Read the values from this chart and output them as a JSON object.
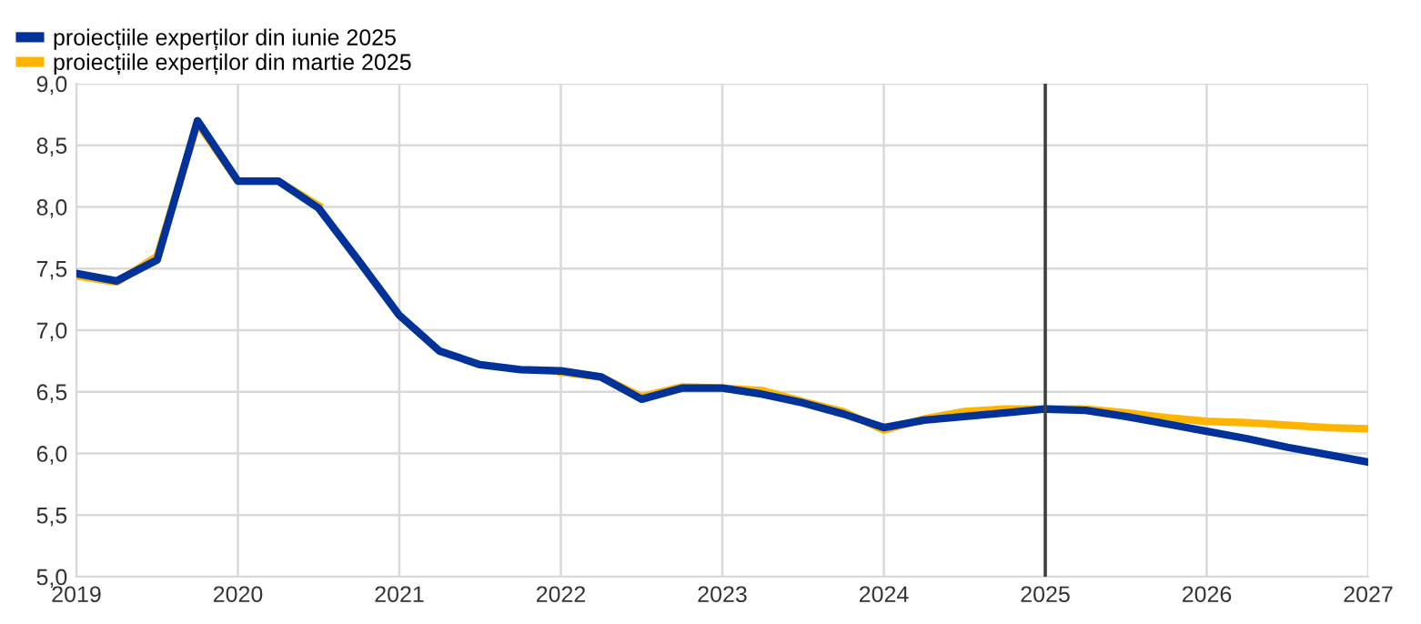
{
  "chart_data": {
    "type": "line",
    "x": [
      2019,
      2019.25,
      2019.5,
      2019.75,
      2020,
      2020.25,
      2020.5,
      2020.75,
      2021,
      2021.25,
      2021.5,
      2021.75,
      2022,
      2022.25,
      2022.5,
      2022.75,
      2023,
      2023.25,
      2023.5,
      2023.75,
      2024,
      2024.25,
      2024.5,
      2024.75,
      2025,
      2025.25,
      2025.5,
      2025.75,
      2026,
      2026.25,
      2026.5,
      2026.75,
      2027
    ],
    "series": [
      {
        "name": "proiecțiile experților din martie 2025",
        "color": "#ffb400",
        "values": [
          7.44,
          7.39,
          7.6,
          8.68,
          8.21,
          8.21,
          8.01,
          null,
          null,
          null,
          null,
          null,
          6.66,
          6.62,
          6.46,
          6.54,
          6.53,
          6.51,
          6.42,
          6.34,
          6.19,
          6.28,
          6.34,
          6.36,
          6.36,
          6.36,
          6.33,
          6.29,
          6.26,
          6.25,
          6.23,
          6.21,
          6.2
        ]
      },
      {
        "name": "proiecțiile experților din iunie 2025",
        "color": "#003299",
        "values": [
          7.46,
          7.4,
          7.57,
          8.7,
          8.21,
          8.21,
          7.99,
          7.56,
          7.12,
          6.83,
          6.72,
          6.68,
          6.67,
          6.62,
          6.44,
          6.53,
          6.53,
          6.48,
          6.41,
          6.32,
          6.21,
          6.27,
          6.3,
          6.33,
          6.36,
          6.35,
          6.3,
          6.24,
          6.18,
          6.12,
          6.05,
          5.99,
          5.93
        ]
      }
    ],
    "xlim": [
      2019,
      2027
    ],
    "xticks": [
      2019,
      2020,
      2021,
      2022,
      2023,
      2024,
      2025,
      2026,
      2027
    ],
    "ylim": [
      5.0,
      9.0
    ],
    "yticks": [
      {
        "value": 5.0,
        "label": "5,0"
      },
      {
        "value": 5.5,
        "label": "5,5"
      },
      {
        "value": 6.0,
        "label": "6,0"
      },
      {
        "value": 6.5,
        "label": "6,5"
      },
      {
        "value": 7.0,
        "label": "7,0"
      },
      {
        "value": 7.5,
        "label": "7,5"
      },
      {
        "value": 8.0,
        "label": "8,0"
      },
      {
        "value": 8.5,
        "label": "8,5"
      },
      {
        "value": 9.0,
        "label": "9,0"
      }
    ],
    "ref_lines": [
      {
        "axis": "x",
        "value": 2025,
        "label": null,
        "color": "#404040"
      }
    ],
    "grid": true,
    "legend": "top left",
    "marker": "none",
    "line_style": "solid"
  }
}
